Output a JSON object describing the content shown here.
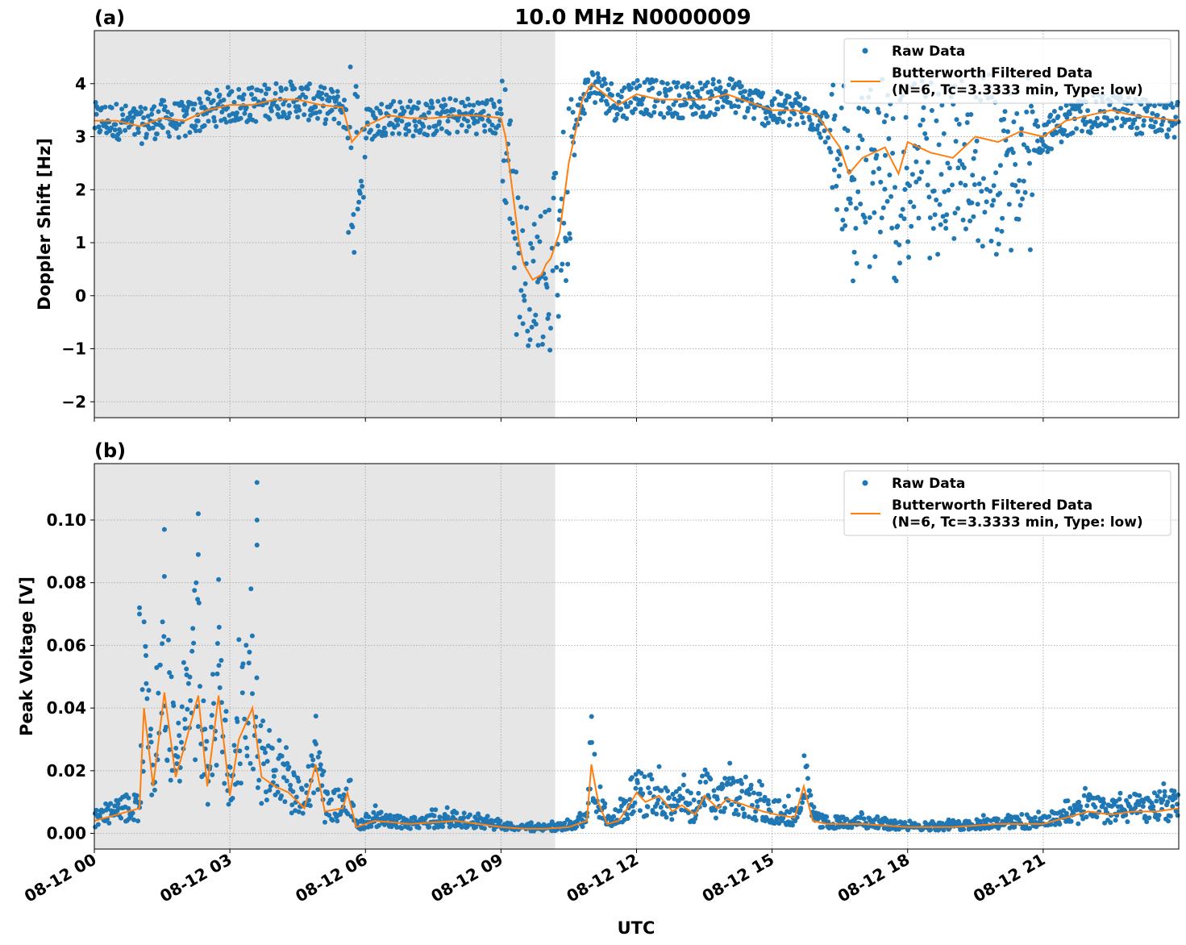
{
  "figure": {
    "title": "10.0 MHz N0000009",
    "xlabel": "UTC"
  },
  "legend": {
    "raw_label": "Raw Data",
    "filtered_label_line1": "Butterworth Filtered Data",
    "filtered_label_line2": "(N=6, Tc=3.3333 min, Type: low)"
  },
  "colors": {
    "raw": "#1f77b4",
    "filtered": "#ff7f0e",
    "night_shading": "#e6e6e6",
    "grid": "#b0b0b0"
  },
  "chart_data": [
    {
      "type": "scatter",
      "panel_label": "(a)",
      "ylabel": "Doppler Shift [Hz]",
      "xlim_hours": [
        0,
        24
      ],
      "ylim": [
        -2.3,
        5.0
      ],
      "yticks": [
        -2,
        -1,
        0,
        1,
        2,
        3,
        4
      ],
      "ytick_labels": [
        "−2",
        "−1",
        "0",
        "1",
        "2",
        "3",
        "4"
      ],
      "night_shading_hours": [
        0,
        10.2
      ],
      "grid": true,
      "legend_position": "upper right",
      "filtered_series": {
        "x_hours": [
          0,
          0.5,
          1,
          1.5,
          2,
          2.5,
          3,
          3.5,
          4,
          4.5,
          5,
          5.5,
          5.7,
          6,
          6.5,
          7,
          7.5,
          8,
          8.5,
          9,
          9.1,
          9.25,
          9.4,
          9.5,
          9.7,
          9.9,
          10,
          10.1,
          10.3,
          10.5,
          10.8,
          11,
          11.3,
          11.6,
          12,
          12.5,
          13,
          13.5,
          14,
          14.5,
          15,
          15.5,
          16,
          16.5,
          16.7,
          17,
          17.5,
          17.8,
          18,
          18.5,
          19,
          19.5,
          20,
          20.5,
          21,
          21.5,
          22,
          22.5,
          23,
          23.5,
          24
        ],
        "values": [
          3.3,
          3.3,
          3.2,
          3.35,
          3.3,
          3.5,
          3.6,
          3.6,
          3.7,
          3.7,
          3.6,
          3.55,
          2.9,
          3.2,
          3.4,
          3.35,
          3.35,
          3.4,
          3.4,
          3.35,
          3.0,
          2.0,
          1.0,
          0.6,
          0.3,
          0.4,
          0.6,
          0.7,
          1.2,
          2.5,
          3.7,
          4.0,
          3.8,
          3.6,
          3.8,
          3.7,
          3.7,
          3.7,
          3.8,
          3.65,
          3.5,
          3.5,
          3.4,
          2.8,
          2.3,
          2.6,
          2.8,
          2.3,
          2.9,
          2.7,
          2.6,
          3.0,
          2.9,
          3.1,
          3.0,
          3.3,
          3.4,
          3.5,
          3.4,
          3.35,
          3.3
        ]
      }
    },
    {
      "type": "scatter",
      "panel_label": "(b)",
      "ylabel": "Peak Voltage [V]",
      "xlim_hours": [
        0,
        24
      ],
      "ylim": [
        -0.005,
        0.118
      ],
      "yticks": [
        0.0,
        0.02,
        0.04,
        0.06,
        0.08,
        0.1
      ],
      "ytick_labels": [
        "0.00",
        "0.02",
        "0.04",
        "0.06",
        "0.08",
        "0.10"
      ],
      "night_shading_hours": [
        0,
        10.2
      ],
      "grid": true,
      "legend_position": "upper right",
      "filtered_series": {
        "x_hours": [
          0,
          0.5,
          1,
          1.1,
          1.3,
          1.55,
          1.8,
          2.0,
          2.3,
          2.5,
          2.75,
          3.0,
          3.2,
          3.5,
          3.7,
          4.0,
          4.3,
          4.65,
          4.9,
          5.1,
          5.5,
          5.6,
          5.8,
          6.2,
          7,
          8,
          8.5,
          9,
          9.5,
          10,
          10.5,
          10.9,
          11.0,
          11.15,
          11.35,
          11.6,
          11.8,
          12.0,
          12.2,
          12.5,
          12.8,
          13.0,
          13.3,
          13.5,
          13.8,
          14.0,
          14.4,
          14.8,
          15.1,
          15.5,
          15.7,
          15.9,
          16.2,
          17,
          18,
          19,
          20,
          20.5,
          21,
          21.5,
          22,
          22.5,
          23,
          23.5,
          24
        ],
        "values": [
          0.004,
          0.006,
          0.008,
          0.04,
          0.015,
          0.045,
          0.018,
          0.028,
          0.044,
          0.015,
          0.044,
          0.012,
          0.03,
          0.04,
          0.018,
          0.015,
          0.013,
          0.008,
          0.022,
          0.007,
          0.008,
          0.013,
          0.002,
          0.004,
          0.003,
          0.004,
          0.003,
          0.002,
          0.0015,
          0.0015,
          0.002,
          0.004,
          0.022,
          0.01,
          0.003,
          0.004,
          0.008,
          0.013,
          0.01,
          0.012,
          0.007,
          0.009,
          0.006,
          0.012,
          0.008,
          0.011,
          0.009,
          0.007,
          0.006,
          0.005,
          0.015,
          0.004,
          0.003,
          0.003,
          0.002,
          0.002,
          0.003,
          0.003,
          0.003,
          0.005,
          0.007,
          0.006,
          0.007,
          0.007,
          0.008
        ]
      },
      "outlier_points": {
        "x_hours": [
          2.3,
          2.3,
          3.6,
          3.6,
          3.6,
          1.55,
          1.55,
          2.75,
          1.0,
          1.0
        ],
        "values": [
          0.102,
          0.089,
          0.112,
          0.1,
          0.092,
          0.097,
          0.082,
          0.081,
          0.072,
          0.07
        ]
      }
    }
  ],
  "xaxis": {
    "tick_hours": [
      0,
      3,
      6,
      9,
      12,
      15,
      18,
      21
    ],
    "tick_labels": [
      "08-12 00",
      "08-12 03",
      "08-12 06",
      "08-12 09",
      "08-12 12",
      "08-12 15",
      "08-12 18",
      "08-12 21"
    ]
  }
}
